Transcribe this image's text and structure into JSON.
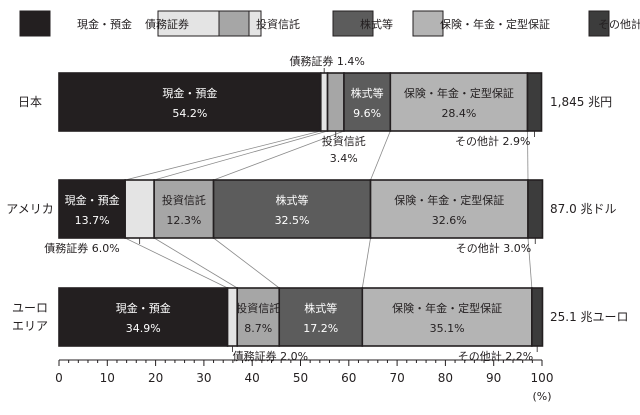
{
  "chart_data": {
    "type": "bar",
    "orientation": "horizontal",
    "stacked": true,
    "percent": true,
    "categories": [
      "日本",
      "アメリカ",
      "ユーロエリア"
    ],
    "category_lines": [
      [
        "日本"
      ],
      [
        "アメリカ"
      ],
      [
        "ユーロ",
        "エリア"
      ]
    ],
    "totals": [
      "1,845 兆円",
      "87.0 兆ドル",
      "25.1 兆ユーロ"
    ],
    "series": [
      {
        "name": "現金・預金",
        "color": "#231f20",
        "text_color": "#ffffff",
        "values": [
          54.2,
          13.7,
          34.9
        ]
      },
      {
        "name": "債務証券",
        "color": "#e4e4e4",
        "text_color": "#231f20",
        "values": [
          1.4,
          6.0,
          2.0
        ]
      },
      {
        "name": "投資信託",
        "color": "#a6a6a6",
        "text_color": "#231f20",
        "values": [
          3.4,
          12.3,
          8.7
        ]
      },
      {
        "name": "株式等",
        "color": "#5c5c5c",
        "text_color": "#ffffff",
        "values": [
          9.6,
          32.5,
          17.2
        ]
      },
      {
        "name": "保険・年金・定型保証",
        "color": "#b4b4b4",
        "text_color": "#231f20",
        "values": [
          28.4,
          32.6,
          35.1
        ]
      },
      {
        "name": "その他計",
        "color": "#3c3c3c",
        "text_color": "#ffffff",
        "values": [
          2.9,
          3.0,
          2.2
        ]
      }
    ],
    "x_ticks": [
      0,
      10,
      20,
      30,
      40,
      50,
      60,
      70,
      80,
      90,
      100
    ],
    "xlim": [
      0,
      100
    ],
    "xunit": "(%)",
    "legend_position": "top",
    "value_suffix": "%",
    "inside_labels": [
      {
        "bar": 0,
        "series": 0
      },
      {
        "bar": 0,
        "series": 3
      },
      {
        "bar": 0,
        "series": 4
      },
      {
        "bar": 1,
        "series": 0
      },
      {
        "bar": 1,
        "series": 2
      },
      {
        "bar": 1,
        "series": 3
      },
      {
        "bar": 1,
        "series": 4
      },
      {
        "bar": 2,
        "series": 0
      },
      {
        "bar": 2,
        "series": 2
      },
      {
        "bar": 2,
        "series": 3
      },
      {
        "bar": 2,
        "series": 4
      }
    ],
    "callouts": [
      {
        "bar": 0,
        "series": 1,
        "lines": [
          "債務証券 1.4%"
        ],
        "side": "above"
      },
      {
        "bar": 0,
        "series": 2,
        "lines": [
          "投資信託",
          "3.4%"
        ],
        "side": "below"
      },
      {
        "bar": 0,
        "series": 5,
        "lines": [
          "その他計 2.9%"
        ],
        "side": "below"
      },
      {
        "bar": 1,
        "series": 1,
        "lines": [
          "債務証券 6.0%"
        ],
        "side": "below"
      },
      {
        "bar": 1,
        "series": 5,
        "lines": [
          "その他計 3.0%"
        ],
        "side": "below"
      },
      {
        "bar": 2,
        "series": 1,
        "lines": [
          "債務証券 2.0%"
        ],
        "side": "below"
      },
      {
        "bar": 2,
        "series": 5,
        "lines": [
          "その他計 2.2%"
        ],
        "side": "below"
      }
    ]
  }
}
